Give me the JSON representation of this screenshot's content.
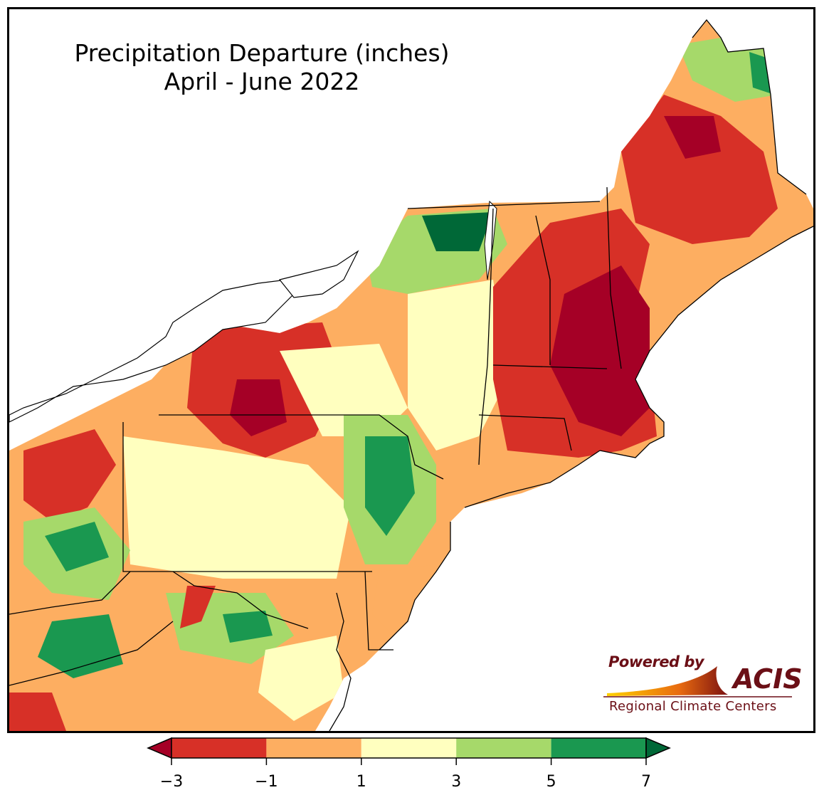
{
  "title": {
    "line1": "Precipitation Departure (inches)",
    "line2": "April - June 2022"
  },
  "logo": {
    "powered_by": "Powered by",
    "name": "ACIS",
    "subtitle": "Regional Climate Centers"
  },
  "legend": {
    "ticks": [
      "−3",
      "−1",
      "1",
      "3",
      "5",
      "7"
    ],
    "bins": [
      {
        "range": "< -3",
        "color": "#a50026"
      },
      {
        "range": "-3 to -1",
        "color": "#d73027"
      },
      {
        "range": "-1 to 1",
        "color": "#fdae61"
      },
      {
        "range": "1 to 3",
        "color": "#ffffbf"
      },
      {
        "range": "3 to 5",
        "color": "#a6d96a"
      },
      {
        "range": "5 to 7",
        "color": "#1a9850"
      },
      {
        "range": "> 7",
        "color": "#006837"
      }
    ]
  }
}
